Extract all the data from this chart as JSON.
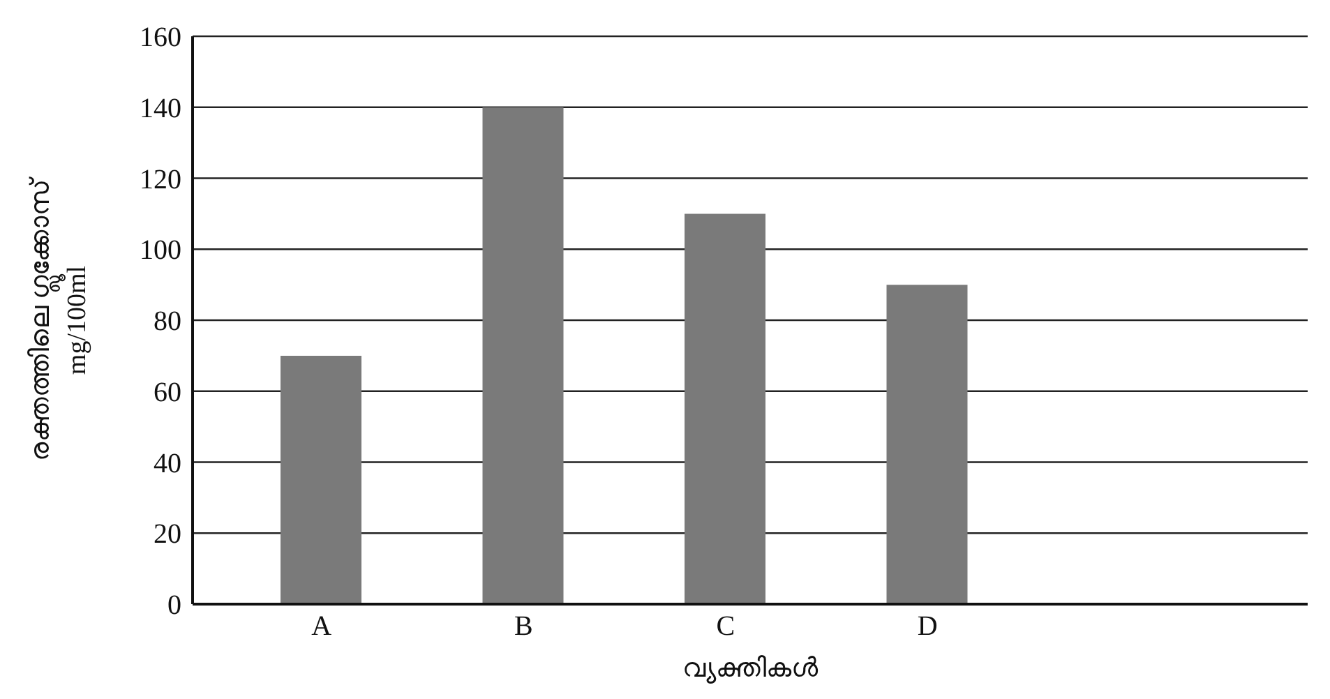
{
  "chart_data": {
    "type": "bar",
    "xlabel": "വ്യക്തികൾ",
    "ylabel": "രക്തത്തിലെ ഗ്ലൂക്കോസ്\nmg/100ml",
    "categories": [
      "A",
      "B",
      "C",
      "D"
    ],
    "values": [
      70,
      140,
      110,
      90
    ],
    "color": "#7a7a7a",
    "ylim": [
      0,
      160
    ],
    "yticks": [
      0,
      20,
      40,
      60,
      80,
      100,
      120,
      140,
      160
    ],
    "grid": "y"
  }
}
